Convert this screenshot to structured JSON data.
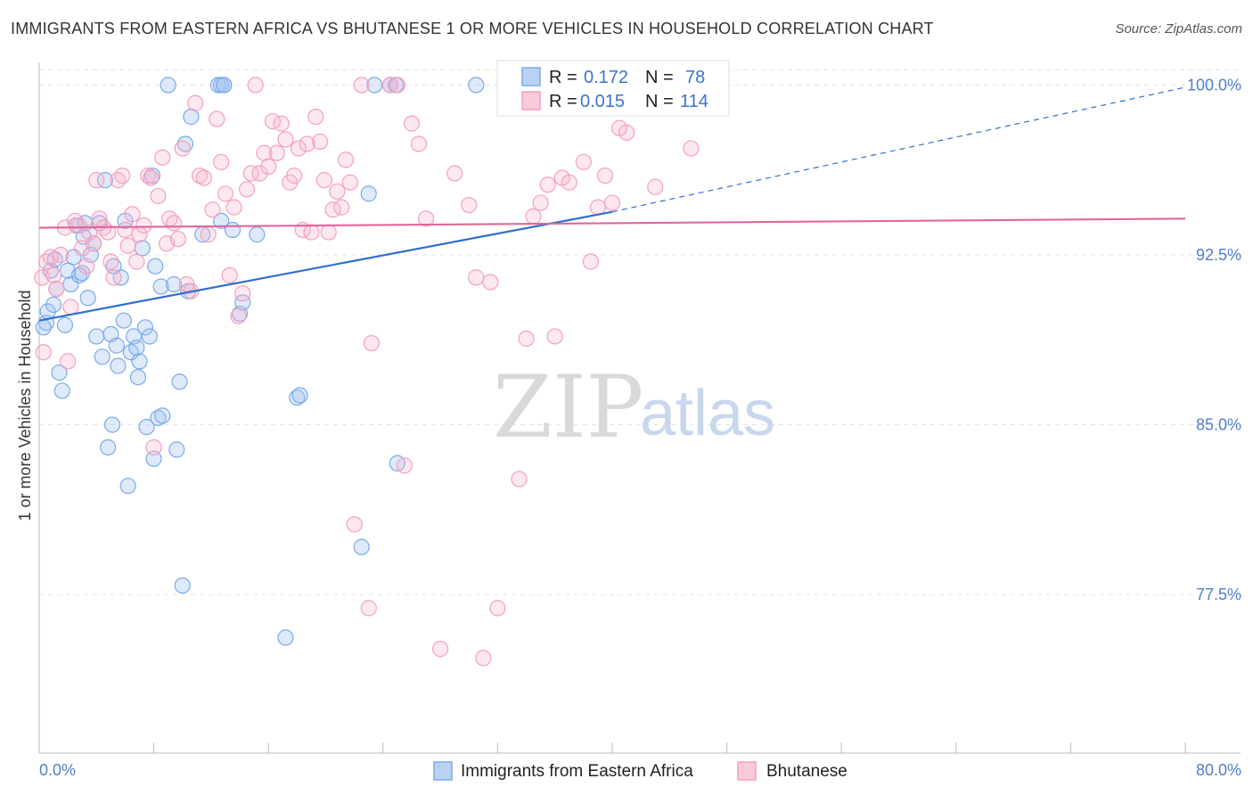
{
  "header": {
    "title": "IMMIGRANTS FROM EASTERN AFRICA VS BHUTANESE 1 OR MORE VEHICLES IN HOUSEHOLD CORRELATION CHART",
    "source": "Source: ZipAtlas.com"
  },
  "watermark": {
    "zip": "ZIP",
    "atlas": "atlas"
  },
  "legend": {
    "rows": [
      {
        "r_label": "R =",
        "r_value": "0.172",
        "n_label": "N =",
        "n_value": "78"
      },
      {
        "r_label": "R =",
        "r_value": "0.015",
        "n_label": "N =",
        "n_value": "114"
      }
    ]
  },
  "chart_data": {
    "type": "scatter",
    "title": "IMMIGRANTS FROM EASTERN AFRICA VS BHUTANESE 1 OR MORE VEHICLES IN HOUSEHOLD CORRELATION CHART",
    "xlabel": "",
    "ylabel": "1 or more Vehicles in Household",
    "xlim": [
      0,
      80
    ],
    "ylim": [
      70.5,
      101
    ],
    "x_tick_labels": [
      "0.0%",
      "80.0%"
    ],
    "y_ticks": [
      77.5,
      85.0,
      92.5,
      100.0
    ],
    "y_tick_labels": [
      "77.5%",
      "85.0%",
      "92.5%",
      "100.0%"
    ],
    "grid": true,
    "legend_position": "top-center",
    "series": [
      {
        "name": "Immigrants from Eastern Africa",
        "color": "#7aaae8",
        "trend_color": "#2f6fcf",
        "trend": {
          "x0": 0,
          "y0": 89.6,
          "x1": 40,
          "y1": 94.4,
          "dash_to_x": 80,
          "dash_to_y": 99.9
        },
        "points": [
          [
            0.5,
            89.5
          ],
          [
            0.6,
            90.0
          ],
          [
            0.8,
            91.8
          ],
          [
            1.0,
            90.3
          ],
          [
            1.1,
            92.3
          ],
          [
            1.2,
            91.0
          ],
          [
            1.4,
            87.3
          ],
          [
            1.6,
            86.5
          ],
          [
            1.8,
            89.4
          ],
          [
            2.0,
            91.8
          ],
          [
            2.2,
            91.2
          ],
          [
            2.4,
            92.4
          ],
          [
            2.6,
            93.8
          ],
          [
            2.8,
            91.6
          ],
          [
            3.0,
            91.7
          ],
          [
            3.1,
            93.3
          ],
          [
            3.2,
            93.9
          ],
          [
            3.4,
            90.6
          ],
          [
            3.6,
            92.5
          ],
          [
            3.8,
            93.0
          ],
          [
            4.0,
            88.9
          ],
          [
            4.2,
            93.9
          ],
          [
            4.4,
            88.0
          ],
          [
            4.6,
            95.8
          ],
          [
            4.8,
            84.0
          ],
          [
            5.0,
            89.0
          ],
          [
            5.1,
            85.0
          ],
          [
            5.2,
            92.0
          ],
          [
            5.4,
            88.5
          ],
          [
            5.5,
            87.6
          ],
          [
            5.7,
            91.5
          ],
          [
            5.9,
            89.6
          ],
          [
            6.0,
            94.0
          ],
          [
            6.2,
            82.3
          ],
          [
            6.4,
            88.2
          ],
          [
            6.6,
            88.9
          ],
          [
            6.8,
            88.4
          ],
          [
            6.9,
            87.1
          ],
          [
            7.0,
            87.8
          ],
          [
            7.2,
            92.8
          ],
          [
            7.4,
            89.3
          ],
          [
            7.5,
            84.9
          ],
          [
            7.7,
            88.9
          ],
          [
            7.9,
            96.0
          ],
          [
            8.0,
            83.5
          ],
          [
            8.1,
            92.0
          ],
          [
            8.3,
            85.3
          ],
          [
            8.5,
            91.1
          ],
          [
            8.6,
            85.4
          ],
          [
            9.0,
            100.0
          ],
          [
            9.4,
            91.2
          ],
          [
            9.6,
            83.9
          ],
          [
            9.8,
            86.9
          ],
          [
            10.0,
            77.9
          ],
          [
            10.2,
            97.4
          ],
          [
            10.4,
            90.9
          ],
          [
            10.6,
            98.6
          ],
          [
            11.4,
            93.4
          ],
          [
            12.5,
            100.0
          ],
          [
            12.7,
            100.0
          ],
          [
            12.9,
            100.0
          ],
          [
            12.9,
            100.0
          ],
          [
            12.7,
            94.0
          ],
          [
            13.5,
            93.6
          ],
          [
            14.0,
            89.9
          ],
          [
            14.2,
            90.4
          ],
          [
            15.2,
            93.4
          ],
          [
            17.2,
            75.6
          ],
          [
            18.0,
            86.2
          ],
          [
            18.2,
            86.3
          ],
          [
            22.5,
            79.6
          ],
          [
            23.0,
            95.2
          ],
          [
            23.4,
            100.0
          ],
          [
            24.5,
            100.0
          ],
          [
            24.9,
            100.0
          ],
          [
            25.0,
            83.3
          ],
          [
            30.5,
            100.0
          ],
          [
            0.3,
            89.3
          ]
        ]
      },
      {
        "name": "Bhutanese",
        "color": "#f59fbd",
        "trend_color": "#e0679a",
        "trend": {
          "x0": 0,
          "y0": 93.7,
          "x1": 80,
          "y1": 94.1
        },
        "points": [
          [
            0.2,
            91.5
          ],
          [
            0.3,
            88.2
          ],
          [
            0.5,
            92.2
          ],
          [
            0.8,
            92.4
          ],
          [
            1.0,
            91.6
          ],
          [
            1.2,
            91.0
          ],
          [
            1.5,
            92.5
          ],
          [
            1.8,
            93.7
          ],
          [
            2.0,
            87.8
          ],
          [
            2.2,
            90.2
          ],
          [
            2.5,
            94.0
          ],
          [
            2.8,
            93.8
          ],
          [
            3.0,
            92.8
          ],
          [
            3.3,
            92.0
          ],
          [
            3.5,
            93.5
          ],
          [
            3.8,
            93.0
          ],
          [
            4.0,
            95.8
          ],
          [
            4.2,
            94.1
          ],
          [
            4.5,
            93.7
          ],
          [
            4.8,
            93.5
          ],
          [
            5.0,
            92.2
          ],
          [
            5.2,
            91.5
          ],
          [
            5.5,
            95.8
          ],
          [
            5.8,
            96.0
          ],
          [
            6.0,
            93.6
          ],
          [
            6.2,
            92.9
          ],
          [
            6.5,
            94.3
          ],
          [
            6.8,
            92.2
          ],
          [
            7.0,
            93.4
          ],
          [
            7.3,
            93.8
          ],
          [
            7.6,
            96.0
          ],
          [
            7.8,
            95.9
          ],
          [
            8.0,
            84.0
          ],
          [
            8.3,
            95.1
          ],
          [
            8.6,
            96.8
          ],
          [
            8.9,
            93.0
          ],
          [
            9.1,
            94.1
          ],
          [
            9.4,
            93.9
          ],
          [
            9.7,
            93.2
          ],
          [
            10.0,
            97.2
          ],
          [
            10.3,
            91.2
          ],
          [
            10.6,
            90.9
          ],
          [
            10.9,
            99.2
          ],
          [
            11.2,
            96.0
          ],
          [
            11.5,
            95.9
          ],
          [
            11.8,
            93.4
          ],
          [
            12.1,
            94.5
          ],
          [
            12.4,
            98.5
          ],
          [
            12.7,
            96.6
          ],
          [
            13.0,
            95.2
          ],
          [
            13.3,
            91.6
          ],
          [
            13.6,
            94.6
          ],
          [
            13.9,
            89.8
          ],
          [
            14.2,
            90.8
          ],
          [
            14.5,
            95.4
          ],
          [
            14.8,
            96.1
          ],
          [
            15.1,
            100.0
          ],
          [
            15.4,
            96.1
          ],
          [
            15.7,
            97.0
          ],
          [
            16.0,
            96.4
          ],
          [
            16.3,
            98.4
          ],
          [
            16.6,
            97.0
          ],
          [
            16.9,
            98.3
          ],
          [
            17.2,
            97.6
          ],
          [
            17.5,
            95.7
          ],
          [
            17.8,
            96.0
          ],
          [
            18.1,
            97.2
          ],
          [
            18.4,
            93.6
          ],
          [
            18.7,
            97.4
          ],
          [
            19.0,
            93.5
          ],
          [
            19.3,
            98.6
          ],
          [
            19.6,
            97.5
          ],
          [
            19.9,
            95.8
          ],
          [
            20.2,
            93.5
          ],
          [
            20.5,
            94.5
          ],
          [
            20.8,
            95.3
          ],
          [
            21.1,
            94.6
          ],
          [
            21.4,
            96.7
          ],
          [
            21.7,
            95.7
          ],
          [
            22.0,
            80.6
          ],
          [
            22.5,
            100.0
          ],
          [
            23.0,
            76.9
          ],
          [
            23.2,
            88.6
          ],
          [
            24.5,
            100.0
          ],
          [
            25.0,
            100.0
          ],
          [
            25.5,
            83.2
          ],
          [
            26.0,
            98.3
          ],
          [
            26.5,
            97.4
          ],
          [
            27.0,
            94.1
          ],
          [
            28.0,
            75.1
          ],
          [
            29.0,
            96.1
          ],
          [
            30.0,
            94.7
          ],
          [
            30.5,
            91.5
          ],
          [
            31.0,
            74.7
          ],
          [
            31.5,
            91.3
          ],
          [
            32.0,
            76.9
          ],
          [
            32.5,
            100.0
          ],
          [
            33.5,
            82.6
          ],
          [
            34.0,
            88.8
          ],
          [
            34.5,
            94.2
          ],
          [
            35.0,
            94.8
          ],
          [
            35.5,
            95.6
          ],
          [
            36.0,
            88.9
          ],
          [
            36.5,
            95.9
          ],
          [
            37.0,
            95.7
          ],
          [
            38.0,
            96.6
          ],
          [
            38.5,
            92.2
          ],
          [
            39.0,
            94.6
          ],
          [
            39.5,
            96.0
          ],
          [
            40.0,
            94.8
          ],
          [
            40.5,
            98.1
          ],
          [
            41.0,
            97.9
          ],
          [
            43.0,
            95.5
          ],
          [
            45.5,
            97.2
          ]
        ]
      }
    ]
  },
  "bottom_legend": {
    "items": [
      {
        "label": "Immigrants from Eastern Africa",
        "color": "#b9d2f3",
        "border": "#7aaae8"
      },
      {
        "label": "Bhutanese",
        "color": "#fbcad9",
        "border": "#f59fbd"
      }
    ]
  }
}
